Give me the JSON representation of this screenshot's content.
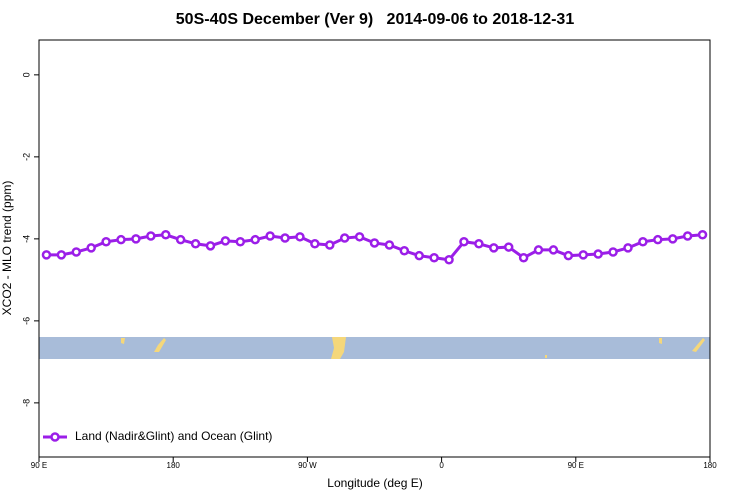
{
  "chart_data": {
    "type": "line",
    "title": "50S-40S December (Ver 9)   2014-09-06 to 2018-12-31",
    "x_label": "Longitude (deg E)",
    "y_label": "XCO2 - MLO trend (ppm)",
    "x": [
      95,
      105,
      115,
      125,
      135,
      145,
      155,
      165,
      175,
      185,
      195,
      205,
      215,
      225,
      235,
      245,
      255,
      265,
      275,
      285,
      295,
      305,
      315,
      325,
      335,
      345,
      355,
      365,
      375,
      385,
      395,
      405,
      415,
      425,
      435,
      445,
      455,
      465,
      475,
      485,
      495,
      505,
      515,
      525,
      535
    ],
    "series": [
      {
        "name": "Land (Nadir&Glint) and Ocean (Glint)",
        "color": "#9b1ee8",
        "values": [
          -4.39,
          -4.39,
          -4.32,
          -4.22,
          -4.07,
          -4.02,
          -4.0,
          -3.93,
          -3.9,
          -4.02,
          -4.12,
          -4.17,
          -4.05,
          -4.07,
          -4.02,
          -3.93,
          -3.98,
          -3.95,
          -4.12,
          -4.15,
          -3.98,
          -3.95,
          -4.1,
          -4.15,
          -4.29,
          -4.41,
          -4.46,
          -4.51,
          -4.07,
          -4.12,
          -4.22,
          -4.2,
          -4.46,
          -4.27,
          -4.27,
          -4.41,
          -4.39,
          -4.37,
          -4.32,
          -4.22,
          -4.07,
          -4.02,
          -4.0,
          -3.93,
          -3.9
        ]
      }
    ],
    "xlim": [
      90,
      540
    ],
    "xticks": [
      {
        "value": 90,
        "label": "90 E"
      },
      {
        "value": 180,
        "label": "180"
      },
      {
        "value": 270,
        "label": "90 W"
      },
      {
        "value": 360,
        "label": "0"
      },
      {
        "value": 450,
        "label": "90 E"
      },
      {
        "value": 540,
        "label": "180"
      }
    ],
    "ylim": [
      -9.32,
      0.85
    ],
    "yticks": [
      0,
      -2,
      -4,
      -6,
      -8
    ],
    "legend": "bottom-left"
  }
}
